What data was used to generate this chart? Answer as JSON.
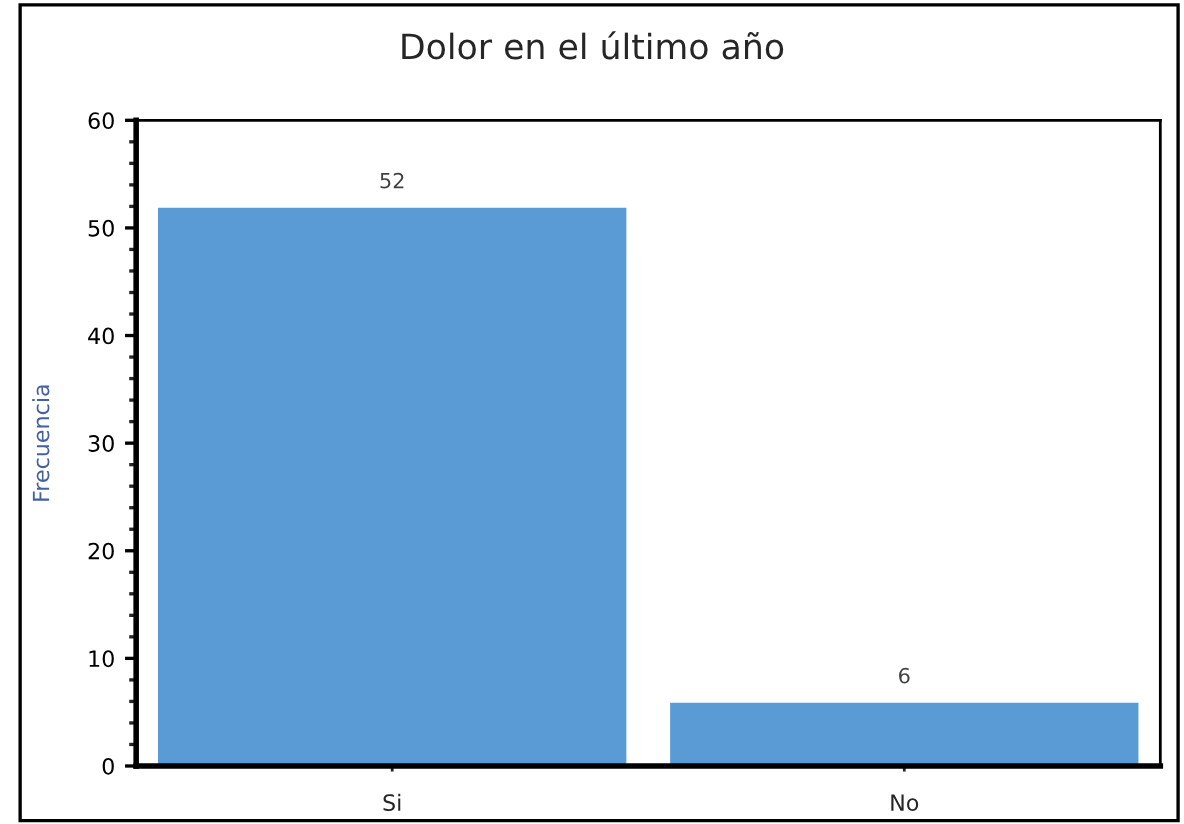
{
  "chart_data": {
    "type": "bar",
    "title": "Dolor en el último año",
    "ylabel": "Frecuencia",
    "categories": [
      "Si",
      "No"
    ],
    "values": [
      52,
      6
    ],
    "color": "#5b9bd5",
    "ylim": [
      0,
      60
    ],
    "yticks": [
      0,
      10,
      20,
      30,
      40,
      50,
      60
    ],
    "data_labels": true,
    "grid": false,
    "legend": false
  }
}
